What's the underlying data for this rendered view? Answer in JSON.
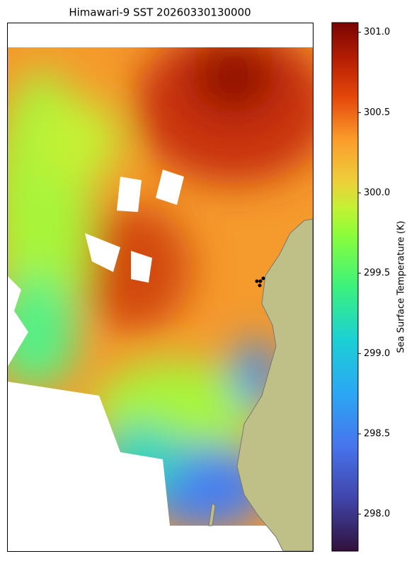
{
  "chart_data": {
    "type": "map",
    "title": "Himawari-9 SST 20260330130000",
    "colorbar": {
      "label": "Sea Surface Temperature (K)",
      "lim": [
        297.77,
        301.06
      ],
      "ticks": [
        {
          "value": 298,
          "label": "298.0"
        },
        298.5,
        {
          "value": 299,
          "label": "299.0"
        },
        299.5,
        {
          "value": 300,
          "label": "300.0"
        },
        300.5,
        {
          "value": 301,
          "label": "301.0"
        }
      ]
    }
  }
}
